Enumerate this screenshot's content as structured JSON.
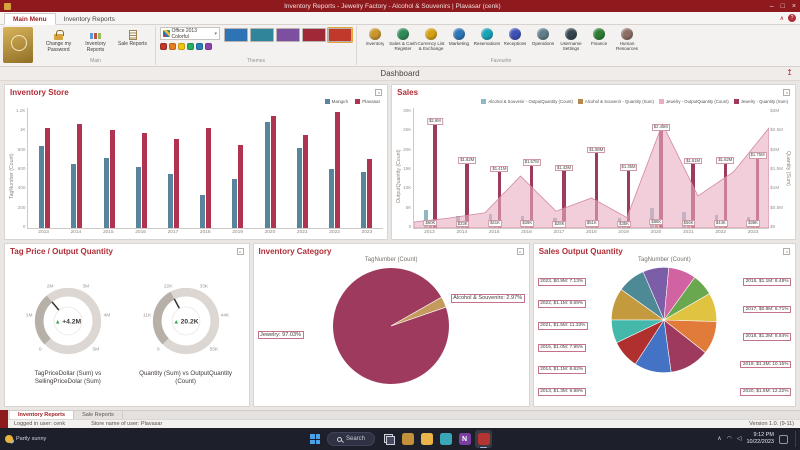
{
  "window": {
    "title": "Inventory Reports - Jewelry Factory - Alcohol & Souvenirs | Plavasar (cenk)"
  },
  "icons": {
    "minimize": "–",
    "maximize": "□",
    "close": "×",
    "dropdown": "▾",
    "collapse_ribbon": "∧",
    "help": "?",
    "export": "↥",
    "tray_chevron": "∧",
    "wifi": "◠",
    "volume": "◁",
    "delta_up": "▲"
  },
  "ribbon": {
    "tabs": [
      "Main Menu",
      "Inventory Reports"
    ],
    "active_tab": "Main Menu",
    "groups": {
      "main": {
        "label": "Main",
        "items": [
          {
            "label": "Change my Password"
          },
          {
            "label": "Inventory Reports"
          },
          {
            "label": "Sale Reports"
          }
        ]
      },
      "themes": {
        "label": "Themes",
        "scheme": "Office 2013 Colorful",
        "quick": [
          "#c0392b",
          "#e67e22",
          "#f1c40f",
          "#27ae60",
          "#2980b9",
          "#8e44ad"
        ],
        "swatches": [
          "#2e74b5",
          "#31859b",
          "#7c4fa0",
          "#9f2936",
          "#c0392b"
        ],
        "selected_index": 4
      },
      "favourite": {
        "label": "Favourite",
        "items": [
          {
            "label": "Inventory",
            "color": "#c9952c"
          },
          {
            "label": "Sales & Cash Register",
            "color": "#2e8b57"
          },
          {
            "label": "Currency List & Exchange Rates",
            "color": "#d4a017"
          },
          {
            "label": "Marketing",
            "color": "#2e75b6"
          },
          {
            "label": "Reservations",
            "color": "#17a2b8"
          },
          {
            "label": "Receptions",
            "color": "#3f51b5"
          },
          {
            "label": "Operations",
            "color": "#607d8b"
          },
          {
            "label": "Username Settings",
            "color": "#37474f"
          },
          {
            "label": "Finance",
            "color": "#2e7d32"
          },
          {
            "label": "Human Resources",
            "color": "#8d6e63"
          }
        ]
      }
    }
  },
  "dashboard": {
    "title": "Dashboard"
  },
  "chart_data": [
    {
      "id": "inventory_store",
      "type": "bar",
      "title": "Inventory Store",
      "ylabel_left": "TagNumber (Count)",
      "categories": [
        "2013",
        "2014",
        "2015",
        "2016",
        "2017",
        "2018",
        "2019",
        "2020",
        "2021",
        "2022",
        "2023"
      ],
      "ylim_left": [
        0,
        1200
      ],
      "yticks_left": [
        "1.2K",
        "1K",
        "800",
        "600",
        "400",
        "200",
        "0"
      ],
      "legend_position": "top-right",
      "grid": false,
      "series": [
        {
          "name": "Mangırlı",
          "kind": "bar",
          "axis": "left",
          "color": "#58859c",
          "values": [
            820,
            640,
            700,
            610,
            545,
            330,
            490,
            1060,
            800,
            590,
            555
          ]
        },
        {
          "name": "Plavasar",
          "kind": "bar",
          "axis": "left",
          "color": "#b03352",
          "values": [
            1000,
            1040,
            980,
            950,
            890,
            1000,
            830,
            1120,
            930,
            1160,
            690
          ]
        }
      ]
    },
    {
      "id": "sales",
      "type": "bar+area",
      "title": "Sales",
      "ylabel_left": "OutputQuantity (Count)",
      "ylabel_right": "Quantity (Sum)",
      "categories": [
        "2013",
        "2014",
        "2015",
        "2016",
        "2017",
        "2018",
        "2019",
        "2020",
        "2021",
        "2022",
        "2023"
      ],
      "ylim_left": [
        0,
        30000
      ],
      "yticks_left": [
        "30K",
        "25K",
        "20K",
        "15K",
        "10K",
        "5K",
        "0"
      ],
      "ylim_right": [
        0,
        3000000
      ],
      "yticks_right": [
        "$3M",
        "$2.5M",
        "$2M",
        "$1.5M",
        "$1M",
        "$0.5M",
        "$0"
      ],
      "legend_position": "top-right",
      "grid": false,
      "series": [
        {
          "name": "Alcohol & Souvenir - OutputQuantity (Count)",
          "kind": "bar",
          "axis": "left",
          "color": "#8fb8c2",
          "values": [
            4500,
            3000,
            3500,
            3000,
            2500,
            1800,
            2600,
            5000,
            4000,
            3200,
            2800
          ]
        },
        {
          "name": "Alcohol & Souvenir - Quantity (Sum)",
          "kind": "bar",
          "axis": "right",
          "color": "#b5884c",
          "values": [
            60000,
            33000,
            41000,
            39000,
            28000,
            51000,
            35000,
            86000,
            56000,
            44000,
            38000
          ],
          "labels": [
            "$60K",
            "$33K",
            "$41K",
            "$39K",
            "$28K",
            "$51K",
            "$35K",
            "$86K",
            "$56K",
            "$44K",
            "$38K"
          ]
        },
        {
          "name": "Jewelry - OutputQuantity (Count)",
          "kind": "area",
          "axis": "left",
          "color": "#e7aec2",
          "stroke": "#d387a4",
          "values": [
            1500,
            2500,
            3800,
            13000,
            4200,
            7500,
            2600,
            26000,
            8000,
            14000,
            25000
          ]
        },
        {
          "name": "Jewelry - Quantity (Sum)",
          "kind": "bar",
          "axis": "right",
          "color": "#9e3a5e",
          "values": [
            2600000,
            1620000,
            1410000,
            1570000,
            1430000,
            1880000,
            1450000,
            2450000,
            1610000,
            1620000,
            1750000
          ],
          "labels": [
            "$2.6M",
            "$1.62M",
            "$1.41M",
            "$1.57M",
            "$1.43M",
            "$1.88M",
            "$1.45M",
            "$2.45M",
            "$1.61M",
            "$1.62M",
            "$1.75M"
          ]
        }
      ]
    },
    {
      "id": "tag_price_output_quantity",
      "type": "gauge",
      "title": "Tag Price / Output Quantity",
      "gauges": [
        {
          "value": "+4.2M",
          "delta_color": "#2e9e4f",
          "caption": "TagPriceDollar (Sum) vs SellingPriceDolar (Sum)",
          "ticks": [
            "0",
            "1M",
            "2M",
            "3M",
            "4M",
            "5M"
          ],
          "needle_angle": -40
        },
        {
          "value": "20.2K",
          "delta_color": "#2e9e4f",
          "caption": "Quantity (Sum) vs OutputQuantity (Count)",
          "ticks": [
            "0",
            "11K",
            "22K",
            "33K",
            "44K",
            "55K"
          ],
          "needle_angle": -28
        }
      ]
    },
    {
      "id": "inventory_category",
      "type": "pie",
      "title": "Inventory Category",
      "subtitle": "TagNumber (Count)",
      "start_angle": 71,
      "slices": [
        {
          "label": "Jewelry: 97.03%",
          "pct": 97.03,
          "color": "#9e3a5e"
        },
        {
          "label": "Alcohol & Souvenirs: 2.97%",
          "pct": 2.97,
          "color": "#c49a5f"
        }
      ]
    },
    {
      "id": "sales_output_quantity",
      "type": "pie",
      "title": "Sales Output Quantity",
      "subtitle": "TagNumber (Count)",
      "start_angle": -90,
      "slices": [
        {
          "label": "2013, $1.3M: 9.88%",
          "pct": 9.88,
          "color": "#c49a3f"
        },
        {
          "label": "2014, $1.1M: 8.62%",
          "pct": 8.62,
          "color": "#4d8a96"
        },
        {
          "label": "2015, $1.0M: 7.95%",
          "pct": 7.95,
          "color": "#7b5ea7"
        },
        {
          "label": "2016, $1.1M: 8.48%",
          "pct": 8.48,
          "color": "#d163a2"
        },
        {
          "label": "2017, $0.9M: 6.71%",
          "pct": 6.71,
          "color": "#6aa84f"
        },
        {
          "label": "2018, $1.2M: 8.84%",
          "pct": 8.84,
          "color": "#e0c341"
        },
        {
          "label": "2019, $1.3M: 10.15%",
          "pct": 10.15,
          "color": "#e07b39"
        },
        {
          "label": "2020, $1.6M: 12.22%",
          "pct": 12.22,
          "color": "#9e3a5e"
        },
        {
          "label": "2021, $1.5M: 11.33%",
          "pct": 11.33,
          "color": "#4472c4"
        },
        {
          "label": "2022, $1.1M: 8.69%",
          "pct": 8.69,
          "color": "#b03030"
        },
        {
          "label": "2023, $0.9M: 7.13%",
          "pct": 7.13,
          "color": "#45b8ac"
        }
      ]
    }
  ],
  "sheet_tabs": [
    {
      "label": "Inventory Reports",
      "active": true
    },
    {
      "label": "Sale Reports",
      "active": false
    }
  ],
  "status_bar": {
    "logged_in": "Logged in user: cenk",
    "store": "Store name of user: Plavasar",
    "version": "Version 1.0. (9-11)"
  },
  "taskbar": {
    "weather": {
      "condition": "Partly sunny"
    },
    "search_label": "Search",
    "apps": [
      {
        "name": "task-view"
      },
      {
        "name": "company-app",
        "color": "#c2913a"
      },
      {
        "name": "file-explorer",
        "color": "#e9b44c"
      },
      {
        "name": "edge-browser",
        "color": "#3aa7b8"
      },
      {
        "name": "onenote",
        "color": "#7b3fa0",
        "letter": "N"
      },
      {
        "name": "inventory-app",
        "color": "#b23532",
        "active": true
      }
    ],
    "tray": {
      "time": "9:12 PM",
      "date": "10/22/2023"
    }
  }
}
